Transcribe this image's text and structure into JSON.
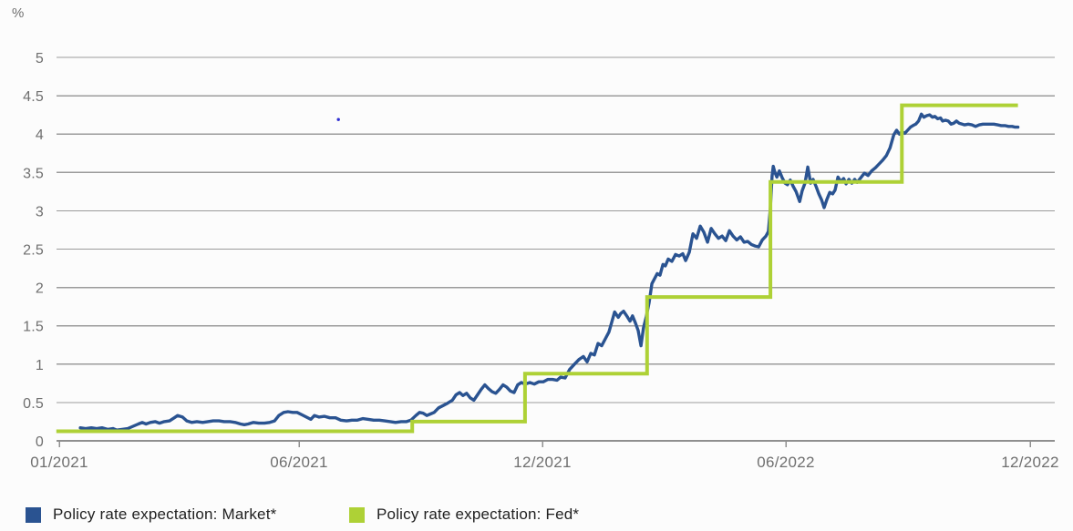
{
  "chart_data": {
    "type": "line",
    "title": "",
    "ylabel": "%",
    "xlabel": "",
    "ylim": [
      0,
      5
    ],
    "grid": "horizontal",
    "legend_position": "bottom-left",
    "x_unit": "months_since_2021_01",
    "yticks": [
      {
        "label": "0",
        "value": 0
      },
      {
        "label": "0.5",
        "value": 0.5
      },
      {
        "label": "1",
        "value": 1
      },
      {
        "label": "1.5",
        "value": 1.5
      },
      {
        "label": "2",
        "value": 2
      },
      {
        "label": "2.5",
        "value": 2.5
      },
      {
        "label": "3",
        "value": 3
      },
      {
        "label": "3.5",
        "value": 3.5
      },
      {
        "label": "4",
        "value": 4
      },
      {
        "label": "4.5",
        "value": 4.5
      },
      {
        "label": "5",
        "value": 5
      }
    ],
    "xticks": [
      {
        "label": "01/2021",
        "month": 0
      },
      {
        "label": "06/2021",
        "month": 5
      },
      {
        "label": "12/2021",
        "month": 11
      },
      {
        "label": "06/2022",
        "month": 17
      },
      {
        "label": "12/2022",
        "month": 23
      }
    ],
    "series": [
      {
        "name": "Policy rate expectation: Market*",
        "color": "#2a5391",
        "style": "line",
        "points": [
          [
            0.44,
            0.17
          ],
          [
            0.55,
            0.16
          ],
          [
            0.67,
            0.17
          ],
          [
            0.78,
            0.16
          ],
          [
            0.89,
            0.17
          ],
          [
            1.01,
            0.15
          ],
          [
            1.12,
            0.16
          ],
          [
            1.2,
            0.14
          ],
          [
            1.31,
            0.15
          ],
          [
            1.43,
            0.16
          ],
          [
            1.54,
            0.19
          ],
          [
            1.65,
            0.22
          ],
          [
            1.73,
            0.24
          ],
          [
            1.81,
            0.22
          ],
          [
            1.9,
            0.24
          ],
          [
            2.0,
            0.25
          ],
          [
            2.09,
            0.23
          ],
          [
            2.19,
            0.25
          ],
          [
            2.3,
            0.26
          ],
          [
            2.4,
            0.3
          ],
          [
            2.47,
            0.33
          ],
          [
            2.57,
            0.31
          ],
          [
            2.66,
            0.26
          ],
          [
            2.76,
            0.24
          ],
          [
            2.87,
            0.25
          ],
          [
            2.99,
            0.24
          ],
          [
            3.1,
            0.25
          ],
          [
            3.21,
            0.26
          ],
          [
            3.33,
            0.26
          ],
          [
            3.44,
            0.25
          ],
          [
            3.56,
            0.25
          ],
          [
            3.67,
            0.24
          ],
          [
            3.78,
            0.22
          ],
          [
            3.86,
            0.21
          ],
          [
            3.94,
            0.22
          ],
          [
            4.05,
            0.24
          ],
          [
            4.16,
            0.23
          ],
          [
            4.28,
            0.23
          ],
          [
            4.39,
            0.24
          ],
          [
            4.49,
            0.26
          ],
          [
            4.58,
            0.33
          ],
          [
            4.68,
            0.37
          ],
          [
            4.77,
            0.38
          ],
          [
            4.87,
            0.37
          ],
          [
            4.96,
            0.37
          ],
          [
            5.07,
            0.34
          ],
          [
            5.18,
            0.31
          ],
          [
            5.29,
            0.28
          ],
          [
            5.38,
            0.33
          ],
          [
            5.49,
            0.31
          ],
          [
            5.63,
            0.32
          ],
          [
            5.76,
            0.3
          ],
          [
            5.9,
            0.3
          ],
          [
            6.03,
            0.27
          ],
          [
            6.17,
            0.26
          ],
          [
            6.3,
            0.27
          ],
          [
            6.44,
            0.27
          ],
          [
            6.57,
            0.29
          ],
          [
            6.71,
            0.28
          ],
          [
            6.84,
            0.27
          ],
          [
            6.98,
            0.27
          ],
          [
            7.11,
            0.26
          ],
          [
            7.25,
            0.25
          ],
          [
            7.38,
            0.24
          ],
          [
            7.52,
            0.25
          ],
          [
            7.65,
            0.25
          ],
          [
            7.76,
            0.27
          ],
          [
            7.88,
            0.33
          ],
          [
            7.97,
            0.37
          ],
          [
            8.06,
            0.36
          ],
          [
            8.15,
            0.33
          ],
          [
            8.24,
            0.35
          ],
          [
            8.33,
            0.37
          ],
          [
            8.44,
            0.43
          ],
          [
            8.55,
            0.46
          ],
          [
            8.66,
            0.49
          ],
          [
            8.78,
            0.53
          ],
          [
            8.87,
            0.6
          ],
          [
            8.96,
            0.63
          ],
          [
            9.04,
            0.59
          ],
          [
            9.13,
            0.62
          ],
          [
            9.22,
            0.56
          ],
          [
            9.31,
            0.53
          ],
          [
            9.4,
            0.6
          ],
          [
            9.49,
            0.67
          ],
          [
            9.58,
            0.73
          ],
          [
            9.67,
            0.68
          ],
          [
            9.76,
            0.64
          ],
          [
            9.85,
            0.62
          ],
          [
            9.94,
            0.67
          ],
          [
            10.03,
            0.73
          ],
          [
            10.12,
            0.7
          ],
          [
            10.21,
            0.65
          ],
          [
            10.3,
            0.63
          ],
          [
            10.39,
            0.73
          ],
          [
            10.48,
            0.76
          ],
          [
            10.57,
            0.74
          ],
          [
            10.69,
            0.76
          ],
          [
            10.8,
            0.74
          ],
          [
            10.91,
            0.77
          ],
          [
            11.02,
            0.77
          ],
          [
            11.13,
            0.8
          ],
          [
            11.25,
            0.8
          ],
          [
            11.36,
            0.79
          ],
          [
            11.45,
            0.83
          ],
          [
            11.56,
            0.82
          ],
          [
            11.67,
            0.93
          ],
          [
            11.79,
            1.0
          ],
          [
            11.9,
            1.06
          ],
          [
            12.01,
            1.1
          ],
          [
            12.1,
            1.03
          ],
          [
            12.19,
            1.14
          ],
          [
            12.28,
            1.12
          ],
          [
            12.37,
            1.27
          ],
          [
            12.46,
            1.24
          ],
          [
            12.55,
            1.33
          ],
          [
            12.64,
            1.42
          ],
          [
            12.71,
            1.55
          ],
          [
            12.78,
            1.68
          ],
          [
            12.87,
            1.61
          ],
          [
            12.93,
            1.66
          ],
          [
            13.0,
            1.69
          ],
          [
            13.09,
            1.62
          ],
          [
            13.16,
            1.56
          ],
          [
            13.22,
            1.63
          ],
          [
            13.29,
            1.54
          ],
          [
            13.36,
            1.44
          ],
          [
            13.43,
            1.24
          ],
          [
            13.49,
            1.47
          ],
          [
            13.56,
            1.62
          ],
          [
            13.63,
            1.8
          ],
          [
            13.7,
            2.05
          ],
          [
            13.76,
            2.11
          ],
          [
            13.83,
            2.18
          ],
          [
            13.9,
            2.16
          ],
          [
            13.97,
            2.3
          ],
          [
            14.03,
            2.28
          ],
          [
            14.1,
            2.37
          ],
          [
            14.19,
            2.34
          ],
          [
            14.28,
            2.43
          ],
          [
            14.37,
            2.41
          ],
          [
            14.46,
            2.44
          ],
          [
            14.53,
            2.35
          ],
          [
            14.62,
            2.46
          ],
          [
            14.71,
            2.7
          ],
          [
            14.8,
            2.64
          ],
          [
            14.89,
            2.8
          ],
          [
            14.98,
            2.72
          ],
          [
            15.07,
            2.59
          ],
          [
            15.16,
            2.77
          ],
          [
            15.25,
            2.7
          ],
          [
            15.34,
            2.64
          ],
          [
            15.43,
            2.67
          ],
          [
            15.52,
            2.61
          ],
          [
            15.61,
            2.74
          ],
          [
            15.7,
            2.67
          ],
          [
            15.79,
            2.62
          ],
          [
            15.88,
            2.66
          ],
          [
            15.97,
            2.59
          ],
          [
            16.06,
            2.6
          ],
          [
            16.15,
            2.56
          ],
          [
            16.24,
            2.54
          ],
          [
            16.33,
            2.53
          ],
          [
            16.42,
            2.62
          ],
          [
            16.51,
            2.67
          ],
          [
            16.57,
            2.73
          ],
          [
            16.62,
            3.05
          ],
          [
            16.66,
            3.45
          ],
          [
            16.69,
            3.58
          ],
          [
            16.73,
            3.5
          ],
          [
            16.78,
            3.44
          ],
          [
            16.84,
            3.52
          ],
          [
            16.91,
            3.43
          ],
          [
            16.98,
            3.36
          ],
          [
            17.04,
            3.34
          ],
          [
            17.11,
            3.4
          ],
          [
            17.18,
            3.32
          ],
          [
            17.25,
            3.25
          ],
          [
            17.34,
            3.12
          ],
          [
            17.4,
            3.26
          ],
          [
            17.47,
            3.36
          ],
          [
            17.54,
            3.57
          ],
          [
            17.61,
            3.36
          ],
          [
            17.67,
            3.41
          ],
          [
            17.74,
            3.32
          ],
          [
            17.81,
            3.22
          ],
          [
            17.88,
            3.14
          ],
          [
            17.94,
            3.04
          ],
          [
            18.01,
            3.15
          ],
          [
            18.08,
            3.24
          ],
          [
            18.15,
            3.22
          ],
          [
            18.21,
            3.27
          ],
          [
            18.28,
            3.44
          ],
          [
            18.35,
            3.38
          ],
          [
            18.42,
            3.42
          ],
          [
            18.48,
            3.35
          ],
          [
            18.55,
            3.41
          ],
          [
            18.62,
            3.36
          ],
          [
            18.69,
            3.41
          ],
          [
            18.75,
            3.37
          ],
          [
            18.84,
            3.43
          ],
          [
            18.93,
            3.49
          ],
          [
            19.02,
            3.46
          ],
          [
            19.11,
            3.52
          ],
          [
            19.2,
            3.56
          ],
          [
            19.29,
            3.61
          ],
          [
            19.38,
            3.66
          ],
          [
            19.47,
            3.72
          ],
          [
            19.56,
            3.82
          ],
          [
            19.65,
            3.99
          ],
          [
            19.72,
            4.05
          ],
          [
            19.79,
            4.0
          ],
          [
            19.85,
            4.03
          ],
          [
            19.92,
            4.01
          ],
          [
            19.99,
            4.05
          ],
          [
            20.06,
            4.09
          ],
          [
            20.12,
            4.11
          ],
          [
            20.19,
            4.13
          ],
          [
            20.26,
            4.17
          ],
          [
            20.33,
            4.26
          ],
          [
            20.39,
            4.22
          ],
          [
            20.46,
            4.24
          ],
          [
            20.53,
            4.25
          ],
          [
            20.6,
            4.22
          ],
          [
            20.66,
            4.23
          ],
          [
            20.73,
            4.2
          ],
          [
            20.8,
            4.21
          ],
          [
            20.85,
            4.17
          ],
          [
            20.92,
            4.18
          ],
          [
            20.99,
            4.17
          ],
          [
            21.06,
            4.13
          ],
          [
            21.12,
            4.14
          ],
          [
            21.19,
            4.17
          ],
          [
            21.26,
            4.14
          ],
          [
            21.33,
            4.13
          ],
          [
            21.39,
            4.12
          ],
          [
            21.48,
            4.13
          ],
          [
            21.57,
            4.12
          ],
          [
            21.66,
            4.1
          ],
          [
            21.75,
            4.12
          ],
          [
            21.84,
            4.13
          ],
          [
            21.93,
            4.13
          ],
          [
            22.02,
            4.13
          ],
          [
            22.11,
            4.13
          ],
          [
            22.2,
            4.12
          ],
          [
            22.29,
            4.11
          ],
          [
            22.38,
            4.11
          ],
          [
            22.47,
            4.1
          ],
          [
            22.56,
            4.1
          ],
          [
            22.63,
            4.09
          ],
          [
            22.7,
            4.09
          ]
        ]
      },
      {
        "name": "Policy rate expectation: Fed*",
        "color": "#aed136",
        "style": "step",
        "step_levels": [
          0.125,
          0.25,
          0.875,
          1.875,
          3.375,
          4.375
        ],
        "points": [
          [
            -0.06,
            0.125
          ],
          [
            7.79,
            0.125
          ],
          [
            7.79,
            0.25
          ],
          [
            10.57,
            0.25
          ],
          [
            10.57,
            0.875
          ],
          [
            13.58,
            0.875
          ],
          [
            13.58,
            1.875
          ],
          [
            16.62,
            1.875
          ],
          [
            16.62,
            3.375
          ],
          [
            19.85,
            3.375
          ],
          [
            19.85,
            4.375
          ],
          [
            22.7,
            4.375
          ]
        ]
      }
    ],
    "stray_point": {
      "month": 5.97,
      "value": 4.19,
      "color": "#2d2dd2"
    }
  }
}
